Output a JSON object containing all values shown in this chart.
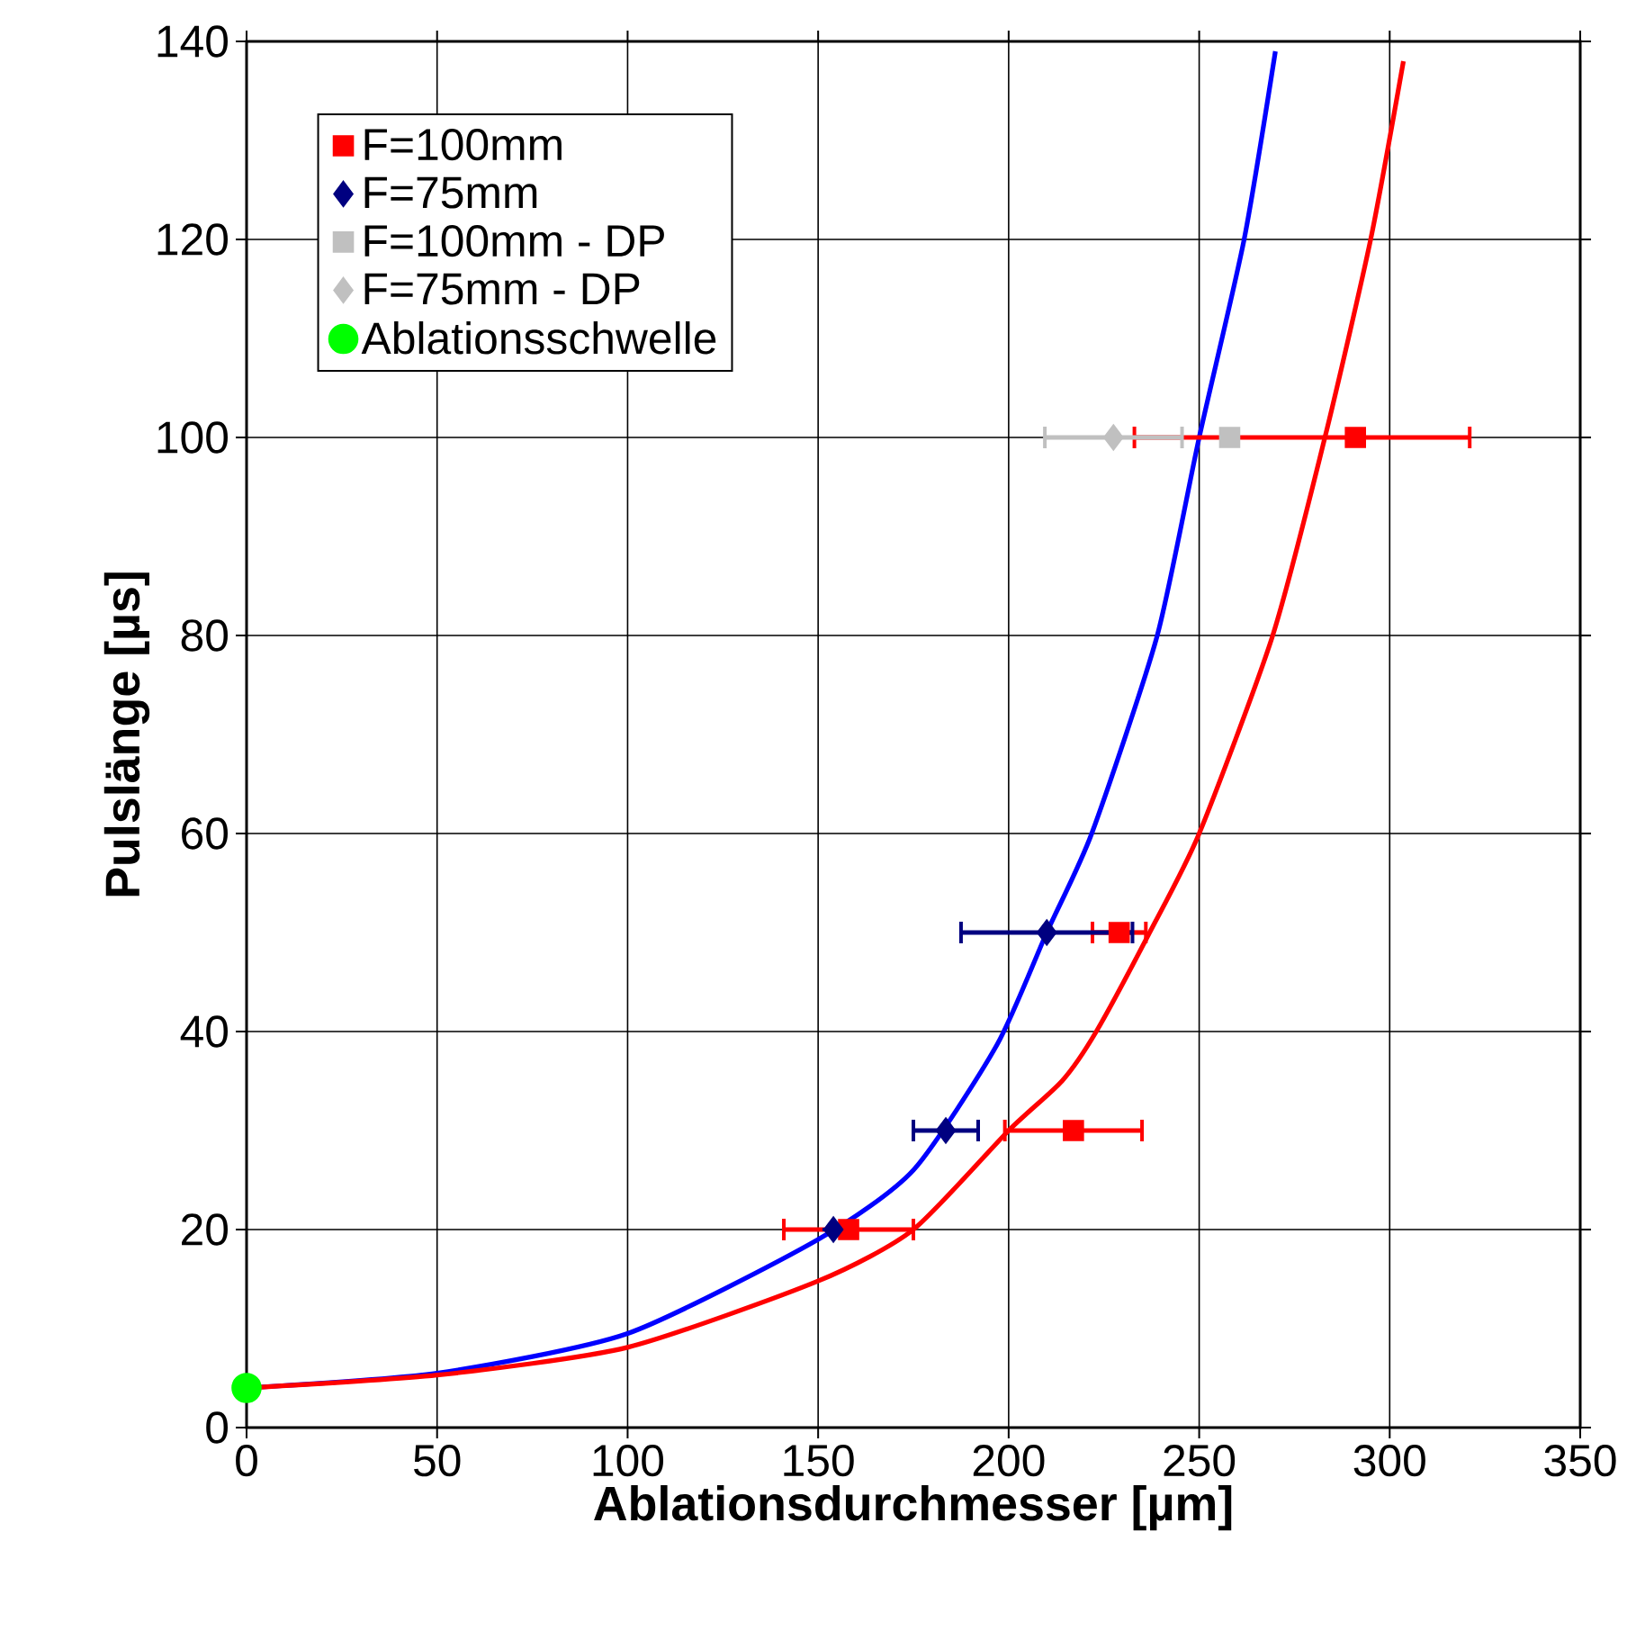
{
  "chart_data": {
    "type": "scatter",
    "xlabel": "Ablationsdurchmesser [µm]",
    "ylabel": "Pulslänge [µs]",
    "xlim": [
      0,
      350
    ],
    "xticks": [
      0,
      50,
      100,
      150,
      200,
      250,
      300,
      350
    ],
    "ylim": [
      0,
      140
    ],
    "yticks": [
      0,
      20,
      40,
      60,
      80,
      100,
      120,
      140
    ],
    "grid": true,
    "legend": "top left",
    "series": [
      {
        "type": "line",
        "color": "#0000ff",
        "marker": "none",
        "x": [
          0,
          50,
          100,
          150,
          175,
          197,
          210,
          221.8,
          239,
          250,
          261.8,
          270
        ],
        "values": [
          4,
          5.5,
          9.5,
          19,
          26,
          38.7,
          50,
          60,
          80,
          100,
          120,
          139
        ]
      },
      {
        "type": "line",
        "color": "#ff0000",
        "marker": "none",
        "x": [
          0,
          50,
          100,
          150,
          175,
          200,
          214,
          223,
          237,
          250,
          269.3,
          283,
          295,
          303.6
        ],
        "values": [
          4,
          5.3,
          8.1,
          14.8,
          20,
          30,
          35,
          40,
          50,
          60,
          80,
          100,
          120,
          138
        ]
      },
      {
        "name": "F=100mm",
        "color": "#ff0000",
        "marker": "square",
        "x": [
          291,
          229,
          217,
          158
        ],
        "values": [
          100,
          50,
          30,
          20
        ],
        "xerrors": [
          [
            233,
            321
          ],
          7,
          18,
          17
        ]
      },
      {
        "name": "F=75mm",
        "color": "#000080",
        "marker": "diamond",
        "x": [
          210,
          183.5,
          154
        ],
        "values": [
          50,
          30,
          20
        ],
        "xerrors": [
          22.5,
          8.5,
          null
        ]
      },
      {
        "name": "F=100mm - DP",
        "color": "#c0c0c0",
        "marker": "square",
        "x": [
          258
        ],
        "values": [
          100
        ]
      },
      {
        "name": "F=75mm - DP",
        "color": "#c0c0c0",
        "marker": "diamond",
        "x": [
          227.5
        ],
        "values": [
          100
        ],
        "xerrors": [
          18
        ]
      },
      {
        "name": "Ablationsschwelle",
        "color": "#00ff00",
        "marker": "circle",
        "x": [
          0
        ],
        "values": [
          4
        ]
      }
    ]
  }
}
